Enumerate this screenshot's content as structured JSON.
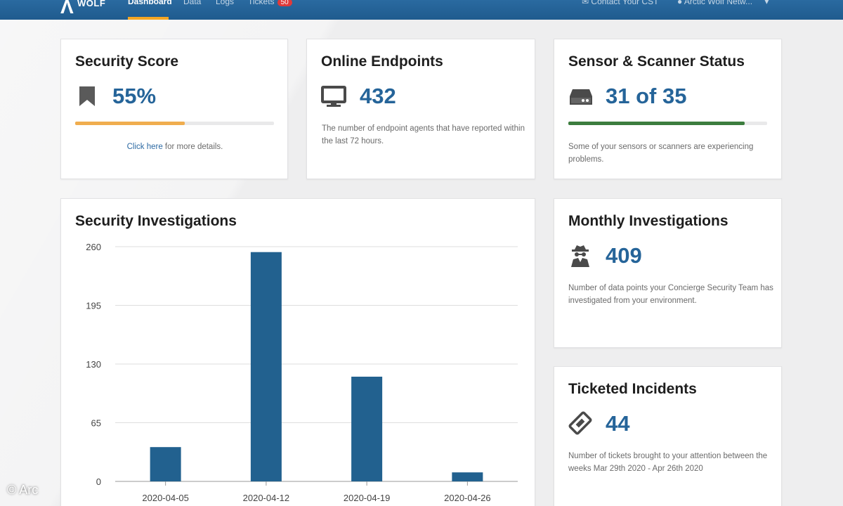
{
  "nav": {
    "logo_word": "WOLF",
    "items": [
      {
        "label": "Dashboard",
        "active": true
      },
      {
        "label": "Data",
        "active": false
      },
      {
        "label": "Logs",
        "active": false
      },
      {
        "label": "Tickets",
        "active": false
      }
    ],
    "tickets_badge": "50",
    "contact_label": "Contact Your CST",
    "account_label": "Arctic Wolf Netw..."
  },
  "security_score": {
    "title": "Security Score",
    "value": "55%",
    "progress": 0.55,
    "progress_color": "#f0ad4e",
    "link_text": "Click here",
    "link_suffix": " for more details.",
    "icon": "bookmark-icon"
  },
  "online_endpoints": {
    "title": "Online Endpoints",
    "value": "432",
    "description": "The number of endpoint agents that have reported within the last 72 hours.",
    "icon": "monitor-icon"
  },
  "sensor_status": {
    "title": "Sensor & Scanner Status",
    "value": "31 of 35",
    "progress": 0.886,
    "progress_color": "#3c7d3e",
    "description": "Some of your sensors or scanners are experiencing problems.",
    "icon": "server-icon"
  },
  "monthly_investigations": {
    "title": "Monthly Investigations",
    "value": "409",
    "description": "Number of data points your Concierge Security Team has investigated from your environment.",
    "icon": "spy-icon"
  },
  "ticketed_incidents": {
    "title": "Ticketed Incidents",
    "value": "44",
    "description": "Number of tickets brought to your attention between the weeks Mar 29th 2020 - Apr 26th 2020",
    "icon": "ticket-icon"
  },
  "investigations_chart": {
    "title": "Security Investigations"
  },
  "chart_data": {
    "type": "bar",
    "title": "Security Investigations",
    "categories": [
      "2020-04-05",
      "2020-04-12",
      "2020-04-19",
      "2020-04-26"
    ],
    "values": [
      38,
      254,
      116,
      10
    ],
    "yticks": [
      0,
      65,
      130,
      195,
      260
    ],
    "ylim": [
      0,
      260
    ],
    "grid": true,
    "bar_color": "#22618f"
  },
  "watermark": "© Arc"
}
